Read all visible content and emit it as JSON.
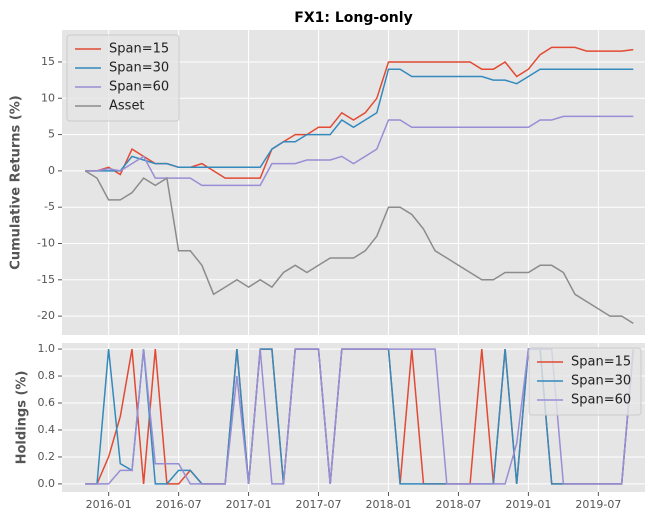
{
  "chart_data": [
    {
      "type": "line",
      "title": "FX1: Long-only",
      "y_label": "Cumulative Returns (%)",
      "x": [
        "2015-11",
        "2015-12",
        "2016-01",
        "2016-02",
        "2016-03",
        "2016-04",
        "2016-05",
        "2016-06",
        "2016-07",
        "2016-08",
        "2016-09",
        "2016-10",
        "2016-11",
        "2016-12",
        "2017-01",
        "2017-02",
        "2017-03",
        "2017-04",
        "2017-05",
        "2017-06",
        "2017-07",
        "2017-08",
        "2017-09",
        "2017-10",
        "2017-11",
        "2017-12",
        "2018-01",
        "2018-02",
        "2018-03",
        "2018-04",
        "2018-05",
        "2018-06",
        "2018-07",
        "2018-08",
        "2018-09",
        "2018-10",
        "2018-11",
        "2018-12",
        "2019-01",
        "2019-02",
        "2019-03",
        "2019-04",
        "2019-05",
        "2019-06",
        "2019-07",
        "2019-08",
        "2019-09",
        "2019-10"
      ],
      "xlim": [
        "2015-09",
        "2019-11"
      ],
      "ylim": [
        -22.6,
        19.4
      ],
      "yticks": [
        -20,
        -15,
        -10,
        -5,
        0,
        5,
        10,
        15
      ],
      "grid": true,
      "legend": "upper left",
      "series": [
        {
          "name": "Span=15",
          "color": "#E24A33",
          "values": [
            0,
            0,
            0.5,
            -0.5,
            3,
            2,
            1,
            1,
            0.5,
            0.5,
            1,
            0,
            -1,
            -1,
            -1,
            -1,
            3,
            4,
            5,
            5,
            6,
            6,
            8,
            7,
            8,
            10,
            15,
            15,
            15,
            15,
            15,
            15,
            15,
            15,
            14,
            14,
            15,
            13,
            14,
            16,
            17,
            17,
            17,
            16.5,
            16.5,
            16.5,
            16.5,
            16.7
          ]
        },
        {
          "name": "Span=30",
          "color": "#348ABD",
          "values": [
            0,
            0,
            0,
            0,
            2,
            1.5,
            1,
            1,
            0.5,
            0.5,
            0.5,
            0.5,
            0.5,
            0.5,
            0.5,
            0.5,
            3,
            4,
            4,
            5,
            5,
            5,
            7,
            6,
            7,
            8,
            14,
            14,
            13,
            13,
            13,
            13,
            13,
            13,
            13,
            12.5,
            12.5,
            12,
            13,
            14,
            14,
            14,
            14,
            14,
            14,
            14,
            14,
            14
          ]
        },
        {
          "name": "Span=60",
          "color": "#988ED5",
          "values": [
            0,
            0,
            0.3,
            0,
            1,
            2,
            -1,
            -1,
            -1,
            -1,
            -2,
            -2,
            -2,
            -2,
            -2,
            -2,
            1,
            1,
            1,
            1.5,
            1.5,
            1.5,
            2,
            1,
            2,
            3,
            7,
            7,
            6,
            6,
            6,
            6,
            6,
            6,
            6,
            6,
            6,
            6,
            6,
            7,
            7,
            7.5,
            7.5,
            7.5,
            7.5,
            7.5,
            7.5,
            7.5
          ]
        },
        {
          "name": "Asset",
          "color": "#8C8C8C",
          "values": [
            0,
            -1,
            -4,
            -4,
            -3,
            -1,
            -2,
            -1,
            -11,
            -11,
            -13,
            -17,
            -16,
            -15,
            -16,
            -15,
            -16,
            -14,
            -13,
            -14,
            -13,
            -12,
            -12,
            -12,
            -11,
            -9,
            -5,
            -5,
            -6,
            -8,
            -11,
            -12,
            -13,
            -14,
            -15,
            -15,
            -14,
            -14,
            -14,
            -13,
            -13,
            -14,
            -17,
            -18,
            -19,
            -20,
            -20,
            -21
          ]
        }
      ]
    },
    {
      "type": "line",
      "y_label": "Holdings (%)",
      "x": [
        "2015-11",
        "2015-12",
        "2016-01",
        "2016-02",
        "2016-03",
        "2016-04",
        "2016-05",
        "2016-06",
        "2016-07",
        "2016-08",
        "2016-09",
        "2016-10",
        "2016-11",
        "2016-12",
        "2017-01",
        "2017-02",
        "2017-03",
        "2017-04",
        "2017-05",
        "2017-06",
        "2017-07",
        "2017-08",
        "2017-09",
        "2017-10",
        "2017-11",
        "2017-12",
        "2018-01",
        "2018-02",
        "2018-03",
        "2018-04",
        "2018-05",
        "2018-06",
        "2018-07",
        "2018-08",
        "2018-09",
        "2018-10",
        "2018-11",
        "2018-12",
        "2019-01",
        "2019-02",
        "2019-03",
        "2019-04",
        "2019-05",
        "2019-06",
        "2019-07",
        "2019-08",
        "2019-09",
        "2019-10"
      ],
      "xlim": [
        "2015-09",
        "2019-11"
      ],
      "xticks": [
        "2016-01",
        "2016-07",
        "2017-01",
        "2017-07",
        "2018-01",
        "2018-07",
        "2019-01",
        "2019-07"
      ],
      "ylim": [
        -0.06,
        1.045
      ],
      "yticks": [
        {
          "value": 0,
          "label": "0.0"
        },
        {
          "value": 0.2,
          "label": "0.2"
        },
        {
          "value": 0.4,
          "label": "0.4"
        },
        {
          "value": 0.6,
          "label": "0.6"
        },
        {
          "value": 0.8,
          "label": "0.8"
        },
        {
          "value": 1,
          "label": "1.0"
        }
      ],
      "grid": true,
      "legend": "upper right",
      "series": [
        {
          "name": "Span=15",
          "color": "#E24A33",
          "values": [
            0,
            0,
            0.2,
            0.5,
            1,
            0,
            1,
            0,
            0,
            0.1,
            0,
            0,
            0,
            1,
            0,
            1,
            1,
            0,
            1,
            1,
            1,
            0,
            1,
            1,
            1,
            1,
            1,
            0,
            1,
            0,
            0,
            0,
            0,
            0,
            1,
            0,
            1,
            0,
            1,
            1,
            0,
            0,
            0,
            0,
            0,
            0,
            0,
            1
          ]
        },
        {
          "name": "Span=30",
          "color": "#348ABD",
          "values": [
            0,
            0,
            1,
            0.15,
            0.1,
            1,
            0,
            0,
            0.1,
            0.1,
            0,
            0,
            0,
            1,
            0,
            1,
            1,
            0,
            1,
            1,
            1,
            0,
            1,
            1,
            1,
            1,
            1,
            0,
            0,
            0,
            0,
            0,
            0,
            0,
            0,
            0,
            1,
            0,
            1,
            1,
            0,
            0,
            0,
            0,
            0,
            0,
            0,
            1
          ]
        },
        {
          "name": "Span=60",
          "color": "#988ED5",
          "values": [
            0,
            0,
            0,
            0.1,
            0.1,
            1,
            0.15,
            0.15,
            0.15,
            0,
            0,
            0,
            0,
            0.8,
            0,
            1,
            0,
            0,
            1,
            1,
            1,
            0,
            1,
            1,
            1,
            1,
            1,
            1,
            1,
            1,
            1,
            0,
            0,
            0,
            0,
            0,
            0,
            0.3,
            1,
            1,
            1,
            0,
            0,
            0,
            0,
            0,
            0,
            1
          ]
        }
      ]
    }
  ]
}
